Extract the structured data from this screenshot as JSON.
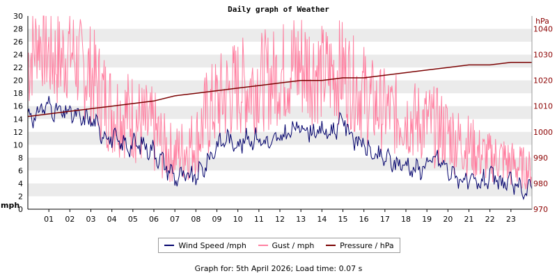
{
  "chart_data": {
    "type": "line",
    "title": "Daily graph of Weather",
    "left_axis": {
      "unit_label": "mph",
      "ylim": [
        0,
        30
      ],
      "ticks": [
        0,
        2,
        4,
        6,
        8,
        10,
        12,
        14,
        16,
        18,
        20,
        22,
        24,
        26,
        28,
        30
      ]
    },
    "right_axis": {
      "unit_label": "hPa",
      "ylim": [
        970,
        1045
      ],
      "ticks": [
        970,
        980,
        990,
        1000,
        1010,
        1020,
        1030,
        1040
      ]
    },
    "x_axis": {
      "range": [
        0,
        24
      ],
      "tick_labels": [
        "01",
        "02",
        "03",
        "04",
        "05",
        "06",
        "07",
        "08",
        "09",
        "10",
        "11",
        "12",
        "13",
        "14",
        "15",
        "16",
        "17",
        "18",
        "19",
        "20",
        "21",
        "22",
        "23"
      ]
    },
    "grid": "horizontal bands",
    "legend_position": "bottom",
    "series": [
      {
        "name": "Wind Speed /mph",
        "axis": "left",
        "color": "#00006b",
        "x": [
          0,
          0.25,
          0.5,
          0.75,
          1,
          1.5,
          2,
          2.5,
          3,
          3.5,
          4,
          4.5,
          5,
          5.5,
          6,
          6.5,
          7,
          7.5,
          8,
          8.5,
          9,
          9.5,
          10,
          10.5,
          11,
          11.5,
          12,
          12.5,
          13,
          13.5,
          14,
          14.5,
          15,
          15.5,
          16,
          16.5,
          17,
          17.5,
          18,
          18.5,
          19,
          19.5,
          20,
          20.5,
          21,
          21.5,
          22,
          22.5,
          23,
          23.5,
          24
        ],
        "values": [
          15,
          14,
          15,
          16,
          16,
          15,
          15,
          14,
          14,
          12,
          11,
          10,
          10,
          10,
          9,
          7,
          5,
          5,
          5,
          7,
          10,
          11,
          10,
          11,
          11,
          10,
          11,
          12,
          13,
          12,
          12,
          12,
          14,
          11,
          10,
          8,
          8,
          7,
          7,
          6,
          7,
          8,
          6,
          5,
          4,
          4,
          5,
          4,
          4,
          3,
          3
        ]
      },
      {
        "name": "Gust / mph",
        "axis": "left",
        "color": "#ff7fa0",
        "x": [
          0,
          0.5,
          1,
          1.5,
          2,
          2.5,
          3,
          3.5,
          4,
          4.5,
          5,
          5.5,
          6,
          6.5,
          7,
          7.5,
          8,
          8.5,
          9,
          9.5,
          10,
          10.5,
          11,
          11.5,
          12,
          12.5,
          13,
          13.5,
          14,
          14.5,
          15,
          15.5,
          16,
          16.5,
          17,
          17.5,
          18,
          18.5,
          19,
          19.5,
          20,
          20.5,
          21,
          21.5,
          22,
          22.5,
          23,
          23.5,
          24
        ],
        "values": [
          28,
          30,
          27,
          26,
          28,
          25,
          22,
          18,
          16,
          15,
          14,
          12,
          10,
          8,
          7,
          8,
          9,
          14,
          16,
          17,
          19,
          20,
          20,
          21,
          22,
          23,
          27,
          22,
          21,
          20,
          22,
          19,
          16,
          13,
          14,
          13,
          13,
          12,
          12,
          11,
          11,
          10,
          8,
          7,
          7,
          7,
          6,
          5,
          4
        ],
        "min": [
          14,
          20,
          16,
          15,
          17,
          14,
          13,
          10,
          8,
          8,
          7,
          6,
          5,
          4,
          4,
          4,
          5,
          7,
          9,
          10,
          11,
          11,
          12,
          12,
          13,
          13,
          13,
          13,
          13,
          13,
          13,
          12,
          10,
          9,
          9,
          8,
          8,
          7,
          7,
          6,
          6,
          5,
          5,
          4,
          4,
          4,
          3,
          3,
          3
        ],
        "max": [
          32,
          33,
          32,
          31,
          33,
          30,
          29,
          26,
          23,
          22,
          22,
          20,
          19,
          15,
          13,
          15,
          16,
          22,
          24,
          26,
          27,
          27,
          28,
          28,
          29,
          31,
          32,
          31,
          29,
          29,
          30,
          27,
          26,
          23,
          22,
          21,
          21,
          20,
          20,
          19,
          18,
          16,
          15,
          13,
          12,
          12,
          11,
          10,
          9
        ]
      },
      {
        "name": "Pressure / hPa",
        "axis": "right",
        "color": "#7a0000",
        "x": [
          0,
          1,
          2,
          3,
          4,
          5,
          6,
          7,
          8,
          9,
          10,
          11,
          12,
          13,
          14,
          15,
          16,
          17,
          18,
          19,
          20,
          21,
          22,
          23,
          24
        ],
        "values": [
          1006,
          1007,
          1008,
          1009,
          1010,
          1011,
          1012,
          1014,
          1015,
          1016,
          1017,
          1018,
          1019,
          1020,
          1020,
          1021,
          1021,
          1022,
          1023,
          1024,
          1025,
          1026,
          1026,
          1027,
          1027
        ]
      }
    ]
  },
  "legend": {
    "wind": "Wind Speed /mph",
    "gust": "Gust / mph",
    "pressure": "Pressure / hPa"
  },
  "footer": {
    "text": "Graph for: 5th April 2026; Load time: 0.07 s"
  }
}
